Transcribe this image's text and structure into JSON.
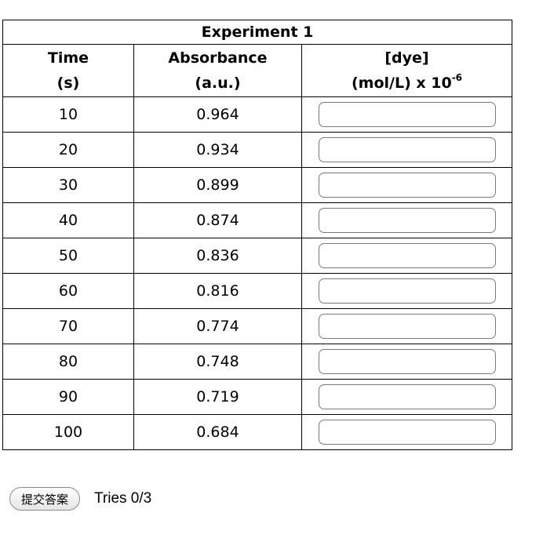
{
  "table": {
    "title": "Experiment 1",
    "headers": {
      "time": [
        "Time",
        "(s)"
      ],
      "absorbance": [
        "Absorbance",
        "(a.u.)"
      ],
      "dye": {
        "line1": "[dye]",
        "line2": "(mol/L) x 10",
        "exponent": "-6"
      }
    },
    "rows": [
      {
        "time": "10",
        "absorbance": "0.964",
        "dye": ""
      },
      {
        "time": "20",
        "absorbance": "0.934",
        "dye": ""
      },
      {
        "time": "30",
        "absorbance": "0.899",
        "dye": ""
      },
      {
        "time": "40",
        "absorbance": "0.874",
        "dye": ""
      },
      {
        "time": "50",
        "absorbance": "0.836",
        "dye": ""
      },
      {
        "time": "60",
        "absorbance": "0.816",
        "dye": ""
      },
      {
        "time": "70",
        "absorbance": "0.774",
        "dye": ""
      },
      {
        "time": "80",
        "absorbance": "0.748",
        "dye": ""
      },
      {
        "time": "90",
        "absorbance": "0.719",
        "dye": ""
      },
      {
        "time": "100",
        "absorbance": "0.684",
        "dye": ""
      }
    ]
  },
  "submit": {
    "label": "提交答案",
    "tries": "Tries 0/3"
  }
}
